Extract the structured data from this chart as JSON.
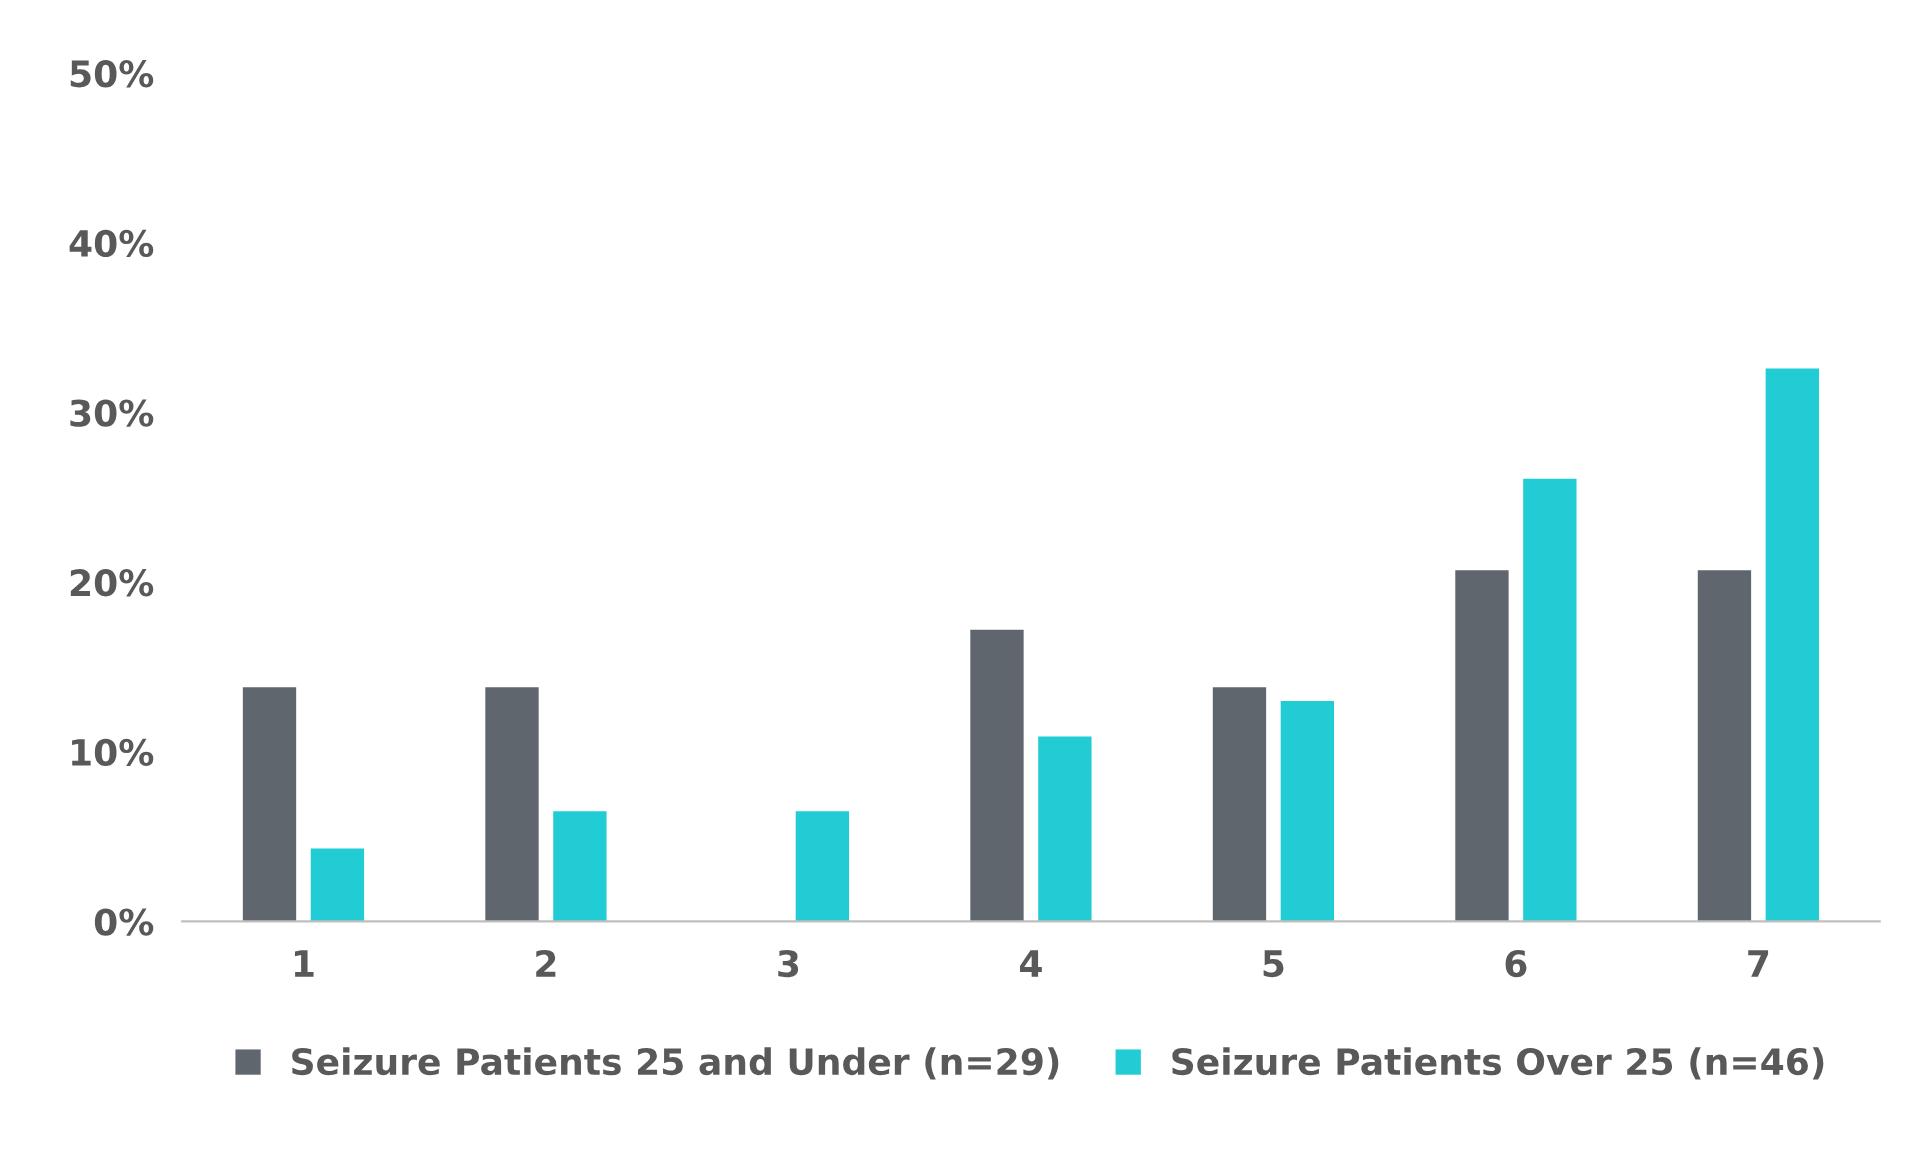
{
  "chart_data": {
    "type": "bar",
    "categories": [
      "1",
      "2",
      "3",
      "4",
      "5",
      "6",
      "7"
    ],
    "series": [
      {
        "name": "Seizure Patients 25 and Under (n=29)",
        "color": "#5f666d",
        "values": [
          13.8,
          13.8,
          0,
          17.2,
          13.8,
          20.7,
          20.7
        ]
      },
      {
        "name": "Seizure Patients Over 25 (n=46)",
        "color": "#22ccd4",
        "values": [
          4.3,
          6.5,
          6.5,
          10.9,
          13.0,
          26.1,
          32.6
        ]
      }
    ],
    "ylim": [
      0,
      50
    ],
    "yticks": [
      {
        "value": 0,
        "label": "0%"
      },
      {
        "value": 10,
        "label": "10%"
      },
      {
        "value": 20,
        "label": "20%"
      },
      {
        "value": 30,
        "label": "30%"
      },
      {
        "value": 40,
        "label": "40%"
      },
      {
        "value": 50,
        "label": "50%"
      }
    ],
    "grid": false,
    "legend": "bottom"
  }
}
